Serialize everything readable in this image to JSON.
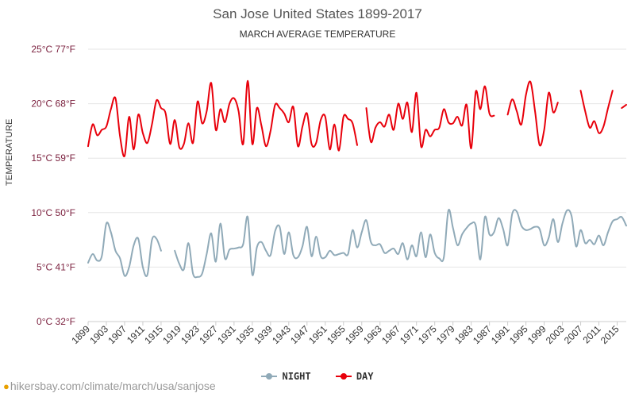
{
  "header": {
    "title": "San Jose United States 1899-2017",
    "subtitle": "MARCH AVERAGE TEMPERATURE"
  },
  "footer": {
    "source_text": "hikersbay.com/climate/march/usa/sanjose",
    "pin_icon": "map-pin-icon"
  },
  "chart_data": {
    "type": "line",
    "ylabel": "TEMPERATURE",
    "ylim": [
      0,
      25
    ],
    "y_ticks": [
      {
        "value": 0,
        "label": "0°C 32°F"
      },
      {
        "value": 5,
        "label": "5°C 41°F"
      },
      {
        "value": 10,
        "label": "10°C 50°F"
      },
      {
        "value": 15,
        "label": "15°C 59°F"
      },
      {
        "value": 20,
        "label": "20°C 68°F"
      },
      {
        "value": 25,
        "label": "25°C 77°F"
      }
    ],
    "x_range": [
      1899,
      2017
    ],
    "x_ticks": [
      1899,
      1903,
      1907,
      1911,
      1915,
      1919,
      1923,
      1927,
      1931,
      1935,
      1939,
      1943,
      1947,
      1951,
      1955,
      1959,
      1963,
      1967,
      1971,
      1975,
      1979,
      1983,
      1987,
      1991,
      1995,
      1999,
      2003,
      2007,
      2011,
      2015
    ],
    "grid": true,
    "legend_position": "bottom",
    "series": [
      {
        "name": "NIGHT",
        "color": "#90aab8",
        "x": [
          1899,
          1900,
          1901,
          1902,
          1903,
          1904,
          1905,
          1906,
          1907,
          1908,
          1909,
          1910,
          1911,
          1912,
          1913,
          1914,
          1915,
          1916,
          1918,
          1919,
          1920,
          1921,
          1922,
          1923,
          1924,
          1925,
          1926,
          1927,
          1928,
          1929,
          1930,
          1931,
          1932,
          1933,
          1934,
          1935,
          1936,
          1937,
          1938,
          1939,
          1940,
          1941,
          1942,
          1943,
          1944,
          1945,
          1946,
          1947,
          1948,
          1949,
          1950,
          1951,
          1952,
          1953,
          1954,
          1955,
          1956,
          1957,
          1958,
          1959,
          1960,
          1961,
          1962,
          1963,
          1964,
          1965,
          1966,
          1967,
          1968,
          1969,
          1970,
          1971,
          1972,
          1973,
          1974,
          1975,
          1976,
          1977,
          1978,
          1979,
          1980,
          1981,
          1982,
          1983,
          1984,
          1985,
          1986,
          1987,
          1988,
          1989,
          1990,
          1991,
          1992,
          1993,
          1994,
          1995,
          1996,
          1997,
          1998,
          1999,
          2000,
          2001,
          2002,
          2003,
          2004,
          2005,
          2006,
          2007,
          2008,
          2009,
          2010,
          2011,
          2012,
          2013,
          2014,
          2015,
          2016,
          2017
        ],
        "values": [
          5.4,
          6.2,
          5.6,
          6.0,
          9.0,
          8.2,
          6.5,
          5.8,
          4.2,
          5.0,
          7.0,
          7.6,
          5.0,
          4.3,
          7.5,
          7.6,
          6.5,
          null,
          6.5,
          5.3,
          4.8,
          7.2,
          4.4,
          4.1,
          4.4,
          6.2,
          8.1,
          5.5,
          9.0,
          5.8,
          6.6,
          6.7,
          6.8,
          7.1,
          9.6,
          4.3,
          6.8,
          7.3,
          6.5,
          6.1,
          8.3,
          8.7,
          6.2,
          8.2,
          6.1,
          5.9,
          6.9,
          8.7,
          6.0,
          7.8,
          6.0,
          5.9,
          6.5,
          6.1,
          6.2,
          6.3,
          6.2,
          8.4,
          6.8,
          8.2,
          9.3,
          7.3,
          7.0,
          7.1,
          6.3,
          6.5,
          6.7,
          6.2,
          7.2,
          5.7,
          7.0,
          6.0,
          8.2,
          5.9,
          8.0,
          6.3,
          5.8,
          5.9,
          10.2,
          8.6,
          7.0,
          8.0,
          8.6,
          9.0,
          8.8,
          5.7,
          9.6,
          8.0,
          8.2,
          9.5,
          8.5,
          7.0,
          9.9,
          10.1,
          8.8,
          8.4,
          8.5,
          8.7,
          8.5,
          7.0,
          7.7,
          9.4,
          7.3,
          9.0,
          10.2,
          9.7,
          6.9,
          8.4,
          7.2,
          7.5,
          7.1,
          7.9,
          7.0,
          8.2,
          9.2,
          9.4,
          9.6,
          8.8
        ]
      },
      {
        "name": "DAY",
        "color": "#e8000b",
        "x": [
          1899,
          1900,
          1901,
          1902,
          1903,
          1904,
          1905,
          1906,
          1907,
          1908,
          1909,
          1910,
          1911,
          1912,
          1913,
          1914,
          1915,
          1916,
          1917,
          1918,
          1919,
          1920,
          1921,
          1922,
          1923,
          1924,
          1925,
          1926,
          1927,
          1928,
          1929,
          1930,
          1931,
          1932,
          1933,
          1934,
          1935,
          1936,
          1937,
          1938,
          1939,
          1940,
          1941,
          1942,
          1943,
          1944,
          1945,
          1946,
          1947,
          1948,
          1949,
          1950,
          1951,
          1952,
          1953,
          1954,
          1955,
          1956,
          1957,
          1958,
          1959,
          1960,
          1961,
          1962,
          1963,
          1964,
          1965,
          1966,
          1967,
          1968,
          1969,
          1970,
          1971,
          1972,
          1973,
          1974,
          1975,
          1976,
          1977,
          1978,
          1979,
          1980,
          1981,
          1982,
          1983,
          1984,
          1985,
          1986,
          1987,
          1988,
          1989,
          1990,
          1991,
          1992,
          1993,
          1994,
          1995,
          1996,
          1997,
          1998,
          1999,
          2000,
          2001,
          2002,
          2003,
          2004,
          2005,
          2006,
          2007,
          2008,
          2009,
          2010,
          2011,
          2012,
          2013,
          2014,
          2015,
          2016,
          2017
        ],
        "values": [
          16.1,
          18.1,
          17.1,
          17.6,
          17.9,
          19.5,
          20.5,
          17.0,
          15.2,
          18.8,
          15.8,
          19.0,
          17.3,
          16.4,
          18.1,
          20.3,
          19.6,
          19.1,
          16.3,
          18.5,
          16.0,
          16.3,
          18.2,
          16.4,
          20.2,
          18.2,
          19.3,
          21.9,
          17.6,
          19.5,
          18.3,
          20.0,
          20.5,
          19.3,
          16.3,
          22.1,
          16.3,
          19.6,
          18.0,
          16.1,
          17.5,
          19.9,
          19.6,
          19.1,
          18.3,
          19.7,
          16.1,
          17.9,
          19.1,
          16.3,
          16.4,
          18.5,
          18.8,
          15.8,
          18.1,
          15.7,
          18.8,
          18.6,
          18.2,
          16.2,
          null,
          19.6,
          16.5,
          17.8,
          18.3,
          17.9,
          19.0,
          17.6,
          20.0,
          18.6,
          20.1,
          17.4,
          21.0,
          16.1,
          17.6,
          17.0,
          17.6,
          17.8,
          19.5,
          18.3,
          18.2,
          18.8,
          18.0,
          19.9,
          15.9,
          21.1,
          19.5,
          21.6,
          19.1,
          18.9,
          null,
          null,
          19.0,
          20.4,
          19.3,
          18.1,
          20.8,
          22.0,
          19.3,
          16.2,
          17.6,
          21.0,
          19.2,
          20.1,
          null,
          null,
          null,
          null,
          21.2,
          19.3,
          17.8,
          18.4,
          17.3,
          17.9,
          19.6,
          21.2,
          null,
          19.6,
          19.9
        ]
      }
    ]
  }
}
